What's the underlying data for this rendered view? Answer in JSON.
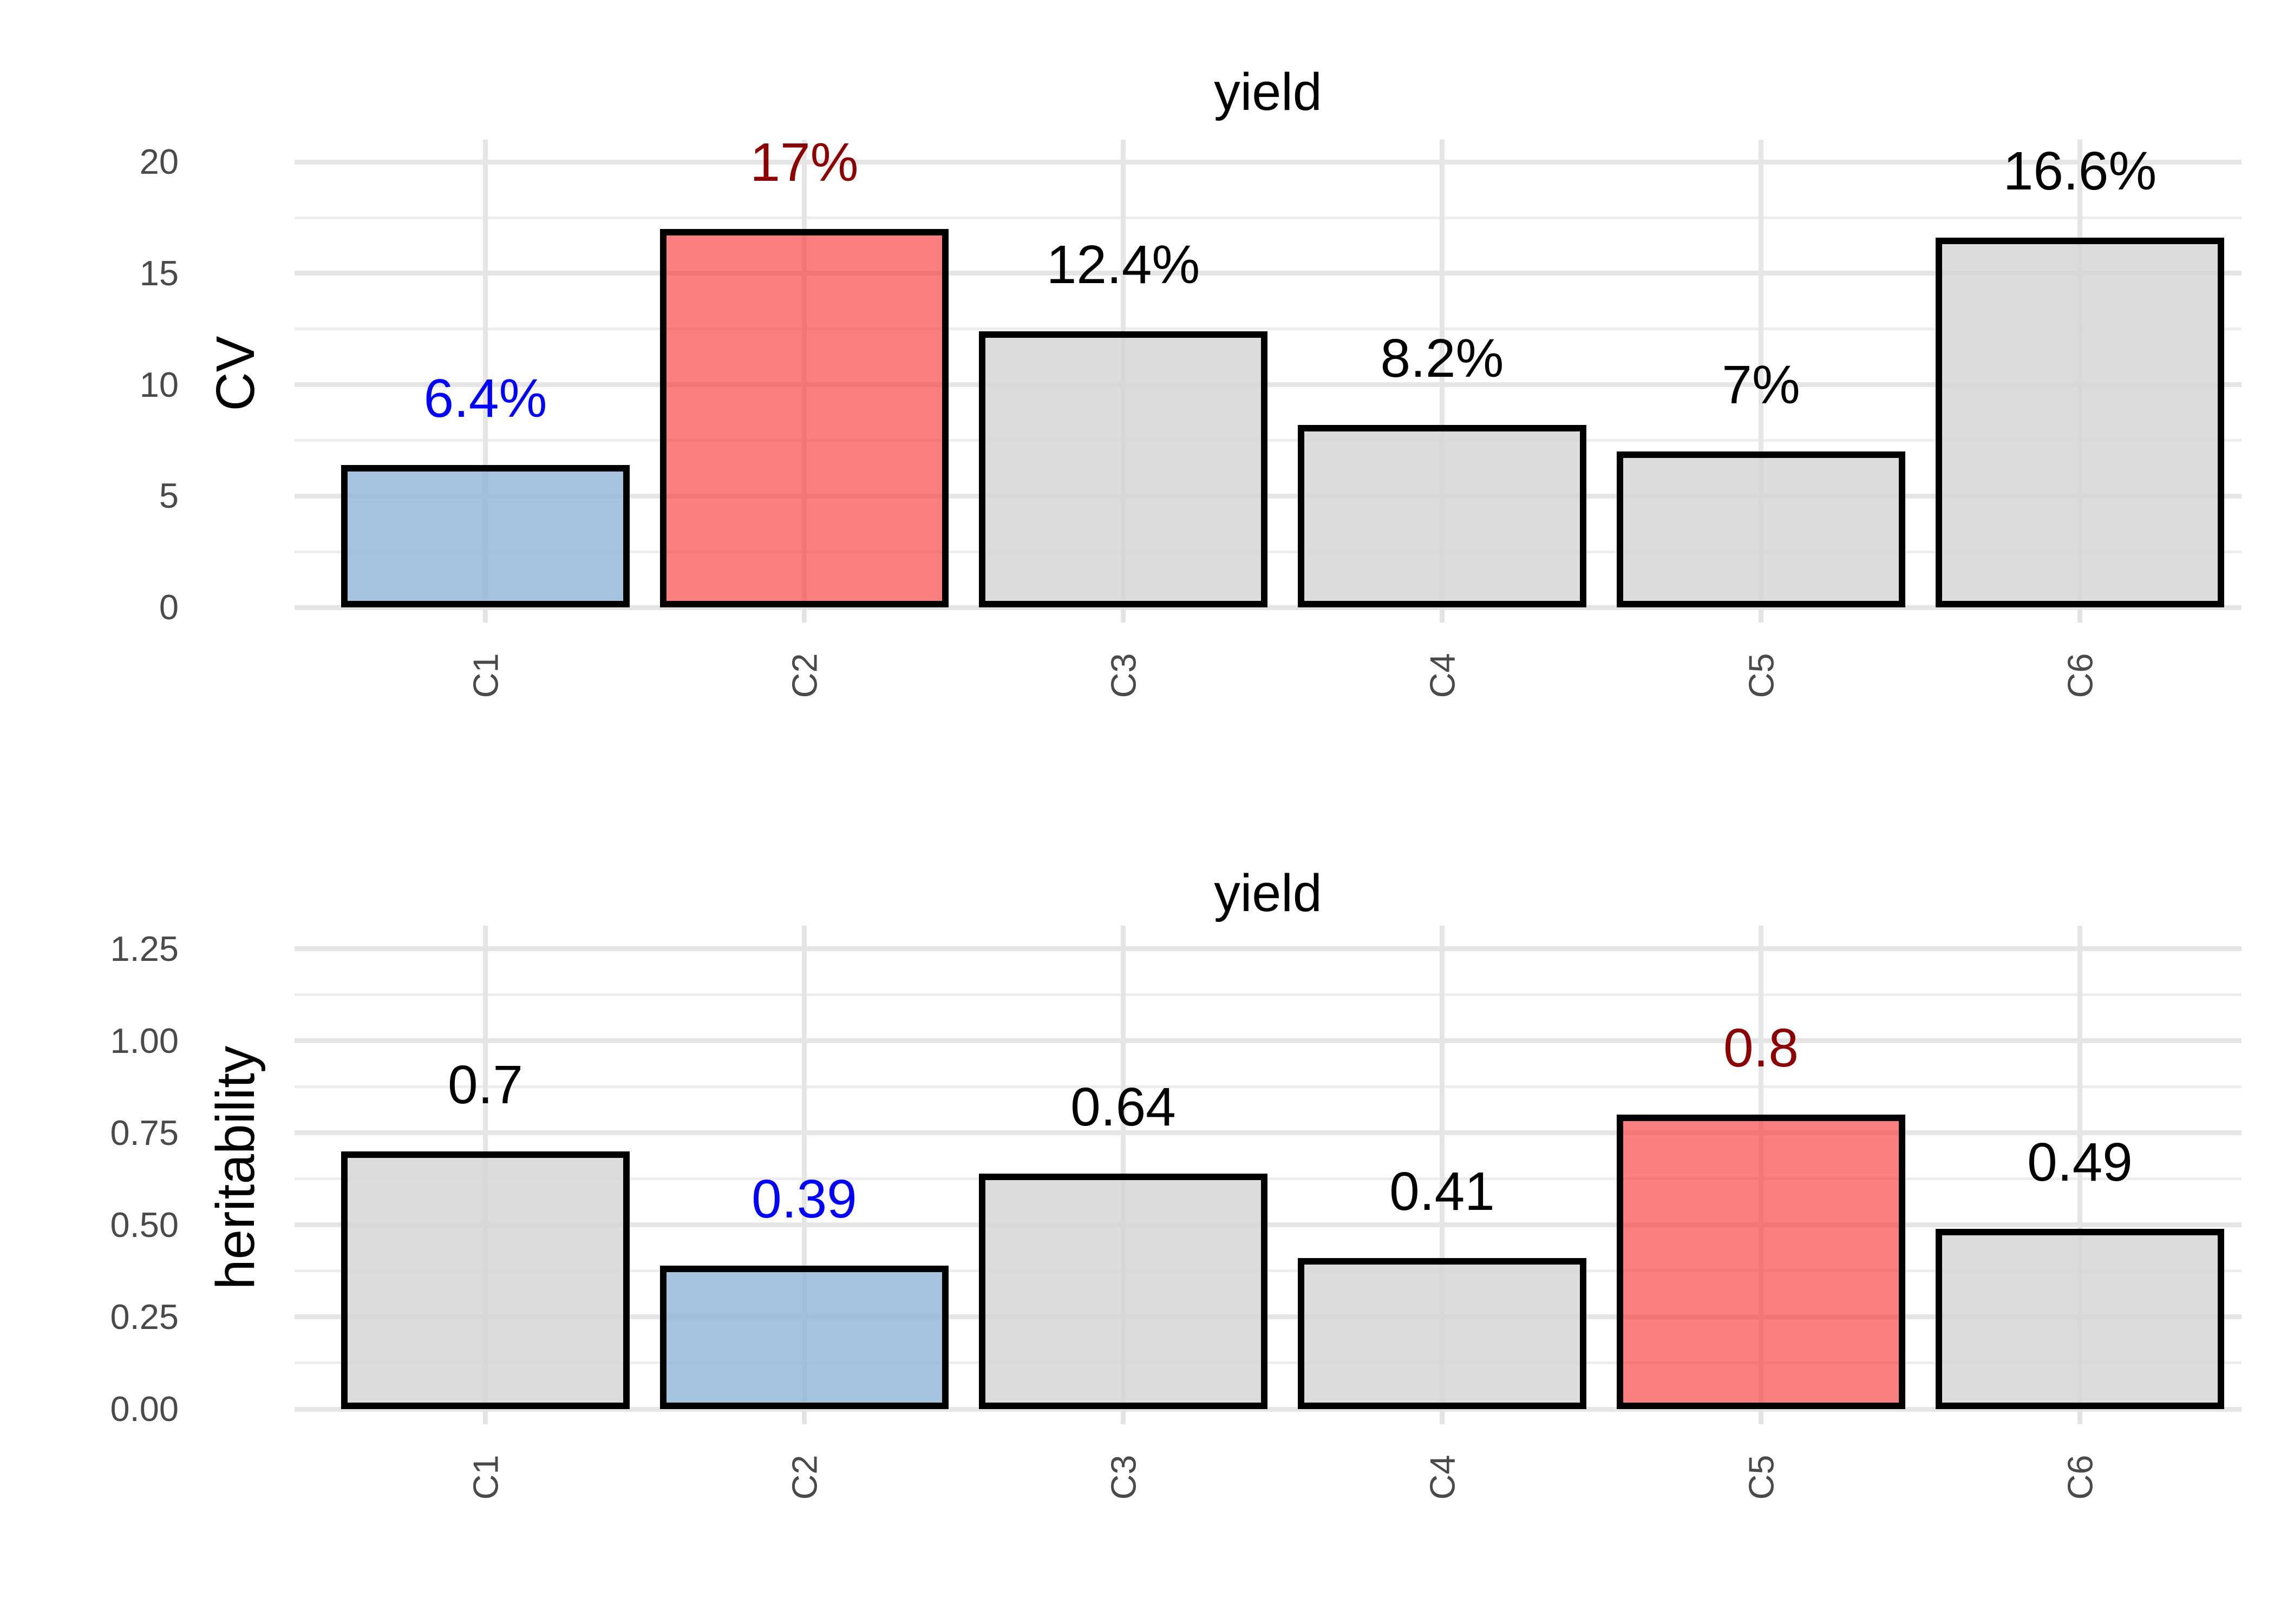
{
  "figure_title": "yield",
  "chart_data": [
    {
      "type": "bar",
      "title": "yield",
      "xlabel": "",
      "ylabel": "CV",
      "categories": [
        "C1",
        "C2",
        "C3",
        "C4",
        "C5",
        "C6"
      ],
      "values": [
        6.4,
        17,
        12.4,
        8.2,
        7,
        16.6
      ],
      "bar_labels": [
        "6.4%",
        "17%",
        "12.4%",
        "8.2%",
        "7%",
        "16.6%"
      ],
      "bar_label_colors": [
        "#0000FF",
        "#8B0000",
        "#000000",
        "#000000",
        "#000000",
        "#000000"
      ],
      "bar_roles": [
        "lowlight",
        "highlight",
        "normal",
        "normal",
        "normal",
        "normal"
      ],
      "yticks": [
        0,
        5,
        10,
        15,
        20
      ],
      "ytick_labels": [
        "0",
        "5",
        "10",
        "15",
        "20"
      ],
      "ylim": [
        0,
        21
      ],
      "minor_step": 2.5,
      "grid": true,
      "legend_position": "none"
    },
    {
      "type": "bar",
      "title": "yield",
      "xlabel": "",
      "ylabel": "heritability",
      "categories": [
        "C1",
        "C2",
        "C3",
        "C4",
        "C5",
        "C6"
      ],
      "values": [
        0.7,
        0.39,
        0.64,
        0.41,
        0.8,
        0.49
      ],
      "bar_labels": [
        "0.7",
        "0.39",
        "0.64",
        "0.41",
        "0.8",
        "0.49"
      ],
      "bar_label_colors": [
        "#000000",
        "#0000FF",
        "#000000",
        "#000000",
        "#8B0000",
        "#000000"
      ],
      "bar_roles": [
        "normal",
        "lowlight",
        "normal",
        "normal",
        "highlight",
        "normal"
      ],
      "yticks": [
        0,
        0.25,
        0.5,
        0.75,
        1,
        1.25
      ],
      "ytick_labels": [
        "0.00",
        "0.25",
        "0.50",
        "0.75",
        "1.00",
        "1.25"
      ],
      "ylim": [
        0,
        1.3125
      ],
      "minor_step": 0.125,
      "grid": true,
      "legend_position": "none"
    }
  ],
  "palette": {
    "normal_fill": "rgba(214,214,214,0.85)",
    "lowlight_fill": "rgba(149,183,216,0.85)",
    "highlight_fill": "rgba(250,60,60,0.66)",
    "bar_border": "#000000",
    "grid_major": "#E5E5E5",
    "grid_minor": "#EDEDED",
    "axis_tick": "#E3E3E3",
    "axis_text": "#4A4A4A",
    "title_text": "#000000",
    "background": "#FFFFFF"
  }
}
